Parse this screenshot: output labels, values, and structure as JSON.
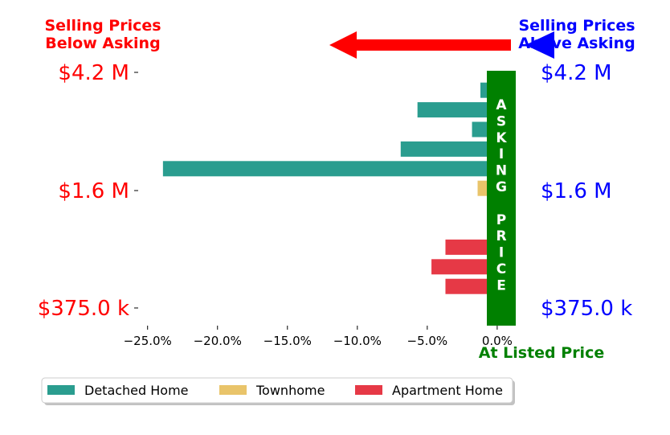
{
  "chart_data": {
    "type": "bar",
    "orientation": "horizontal",
    "xlim": [
      -25.5,
      1.5
    ],
    "x_ticks": [
      -25,
      -20,
      -15,
      -10,
      -5,
      0
    ],
    "x_tick_labels": [
      "−25.0%",
      "−20.0%",
      "−15.0%",
      "−10.0%",
      "−5.0%",
      "0.0%"
    ],
    "y_tick_labels_left": [
      "$4.2 M",
      "$1.6 M",
      "$375.0 k"
    ],
    "y_tick_labels_right": [
      "$4.2 M",
      "$1.6 M",
      "$375.0 k"
    ],
    "bars": [
      {
        "series": "Detached Home",
        "value": -1.2
      },
      {
        "series": "Detached Home",
        "value": -5.7
      },
      {
        "series": "Detached Home",
        "value": -1.8
      },
      {
        "series": "Detached Home",
        "value": -6.9
      },
      {
        "series": "Detached Home",
        "value": -23.9
      },
      {
        "series": "Townhome",
        "value": -1.4
      },
      {
        "series": "Apartment Home",
        "value": 1.2
      },
      {
        "series": "Townhome",
        "value": 1.1
      },
      {
        "series": "Apartment Home",
        "value": -3.7
      },
      {
        "series": "Apartment Home",
        "value": -4.7
      },
      {
        "series": "Apartment Home",
        "value": -3.7
      },
      {
        "series": "Detached Home",
        "value": 1.2
      }
    ],
    "legend": [
      {
        "name": "Detached Home",
        "color": "#2a9d8f"
      },
      {
        "name": "Townhome",
        "color": "#e9c46a"
      },
      {
        "name": "Apartment Home",
        "color": "#e63946"
      }
    ],
    "legend_placement": "bottom",
    "annotations": {
      "below_asking": "Selling Prices\nBelow Asking",
      "above_asking": "Selling Prices\nAbove Asking",
      "asking_price_letters": [
        "A",
        "S",
        "K",
        "I",
        "N",
        "G",
        "",
        "P",
        "R",
        "I",
        "C",
        "E"
      ],
      "at_listed_price": "At Listed Price"
    },
    "colors": {
      "below": "#ff0000",
      "above": "#0000ff",
      "asking": "#008000"
    }
  }
}
